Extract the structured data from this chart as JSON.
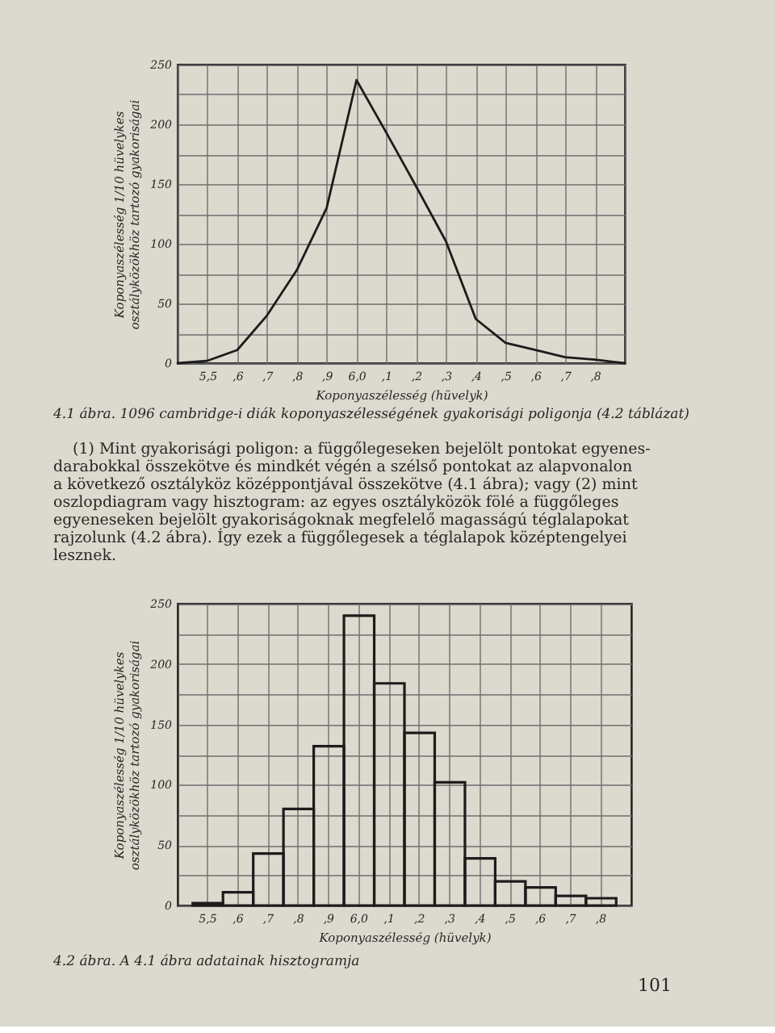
{
  "chart_data": [
    {
      "type": "line",
      "xlabel": "Koponyaszélesség (hüvelyk)",
      "ylabel": "Koponyaszélesség 1/10 hüvelykes\nosztályközökhöz tartozó gyakoriságai",
      "categories": [
        null,
        "5,5",
        ",6",
        ",7",
        ",8",
        ",9",
        "6,0",
        ",1",
        ",2",
        ",3",
        ",4",
        ",5",
        ",6",
        ",7",
        ",8",
        null
      ],
      "values": [
        0,
        2,
        11,
        40,
        78,
        130,
        237,
        193,
        148,
        102,
        37,
        17,
        11,
        5,
        3,
        0
      ],
      "color": "#1c1c1c",
      "ylim": [
        0,
        250
      ],
      "yticks": [
        0,
        {
          "value": 25,
          "label": null
        },
        50,
        {
          "value": 75,
          "label": null
        },
        100,
        {
          "value": 125,
          "label": null
        },
        150,
        {
          "value": 175,
          "label": null
        },
        200,
        {
          "value": 225,
          "label": null
        },
        250
      ],
      "grid": true,
      "annotations": [
        "4.1 ábra. 1096 cambridge-i diák koponyaszélességének gyakorisági poligonja (4.2 táblázat)",
        "(1) Mint gyakorisági poligon: a függőlegeseken bejelölt pontokat egyenes-\ndarabokkal összekötve és mindkét végén a szélső pontokat az alapvonalon\na következő osztályköz középpontjával összekötve (4.1 ábra); vagy (2) mint\noszlopdiagram vagy hisztogram: az egyes osztályközök fölé a függőleges\negyeneseken bejelölt gyakoriságoknak megfelelő magasságú téglalapokat\nrajzolunk (4.2 ábra). Így ezek a függőlegesek a téglalapok középtengelyei\nlesznek."
      ]
    },
    {
      "type": "bar",
      "xlabel": "Koponyaszélesség (hüvelyk)",
      "ylabel": "Koponyaszélesség 1/10 hüvelykes\nosztályközökhöz tartozó gyakoriságai",
      "categories": [
        "5,5",
        ",6",
        ",7",
        ",8",
        ",9",
        "6,0",
        ",1",
        ",2",
        ",3",
        ",4",
        ",5",
        ",6",
        ",7",
        ",8"
      ],
      "values": [
        2,
        11,
        43,
        80,
        132,
        240,
        184,
        143,
        102,
        39,
        20,
        15,
        8,
        6
      ],
      "color": "#1c1c1c",
      "ylim": [
        0,
        250
      ],
      "yticks": [
        0,
        {
          "value": 25,
          "label": null
        },
        50,
        {
          "value": 75,
          "label": null
        },
        100,
        {
          "value": 125,
          "label": null
        },
        150,
        {
          "value": 175,
          "label": null
        },
        200,
        {
          "value": 225,
          "label": null
        },
        250
      ],
      "grid": true,
      "annotations": [
        "4.2 ábra. A 4.1 ábra adatainak hisztogramja",
        "101"
      ]
    }
  ]
}
